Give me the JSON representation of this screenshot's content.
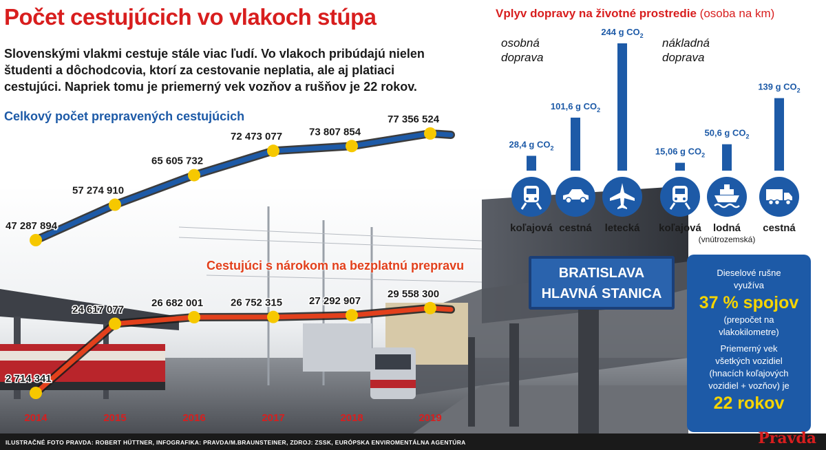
{
  "header": {
    "title": "Počet cestujúcich vo vlakoch stúpa",
    "intro": "Slovenskými vlakmi cestuje stále viac ľudí. Vo vlakoch pribúdajú nielen študenti a dôchodcovia, ktorí za cestovanie neplatia, ale aj platiaci cestujúci. Napriek tomu je priemerný vek vozňov a rušňov je 22 rokov."
  },
  "chart_data": [
    {
      "type": "line",
      "title": "",
      "x": [
        "2014",
        "2015",
        "2016",
        "2017",
        "2018",
        "2019"
      ],
      "series": [
        {
          "name": "Celkový počet prepravených cestujúcich",
          "values": [
            47287894,
            57274910,
            65605732,
            72473077,
            73807854,
            77356524
          ],
          "labels": [
            "47 287 894",
            "57 274 910",
            "65 605 732",
            "72 473 077",
            "73 807 854",
            "77 356 524"
          ],
          "color": "#1d5aa7"
        },
        {
          "name": "Cestujúci s nárokom na bezplatnú prepravu",
          "values": [
            2714341,
            24617077,
            26682001,
            26752315,
            27292907,
            29558300
          ],
          "labels": [
            "2 714 341",
            "24 617 077",
            "26 682 001",
            "26 752 315",
            "27 292 907",
            "29 558 300"
          ],
          "color": "#e2401c"
        }
      ],
      "marker_color": "#f6c800"
    },
    {
      "type": "bar",
      "title": "Vplyv dopravy na životné prostredie",
      "title_unit": "(osoba na km)",
      "groups": [
        {
          "name_line1": "osobná",
          "name_line2": "doprava",
          "bars": [
            {
              "category": "koľajová",
              "value": 28.4,
              "label": "28,4 g CO",
              "icon": "train-icon"
            },
            {
              "category": "cestná",
              "value": 101.6,
              "label": "101,6 g CO",
              "icon": "car-icon"
            },
            {
              "category": "letecká",
              "value": 244,
              "label": "244 g CO",
              "icon": "airplane-icon"
            }
          ]
        },
        {
          "name_line1": "nákladná",
          "name_line2": "doprava",
          "bars": [
            {
              "category": "koľajová",
              "value": 15.06,
              "label": "15,06 g CO",
              "icon": "train-icon"
            },
            {
              "category": "lodná",
              "sub": "(vnútrozemská)",
              "value": 50.6,
              "label": "50,6 g CO",
              "icon": "ship-icon"
            },
            {
              "category": "cestná",
              "value": 139,
              "label": "139 g CO",
              "icon": "truck-icon"
            }
          ]
        }
      ],
      "subscript": "2",
      "bar_color": "#1d5aa7",
      "icon_color": "#1d5aa7"
    }
  ],
  "info_box": {
    "line1": "Dieselové rušne",
    "line2": "využíva",
    "big1": "37 % spojov",
    "line3": "(prepočet na",
    "line4": "vlakokilometre)",
    "line5": "Priemerný vek",
    "line6": "všetkých vozidiel",
    "line7": "(hnacích koľajových",
    "line8": "vozidiel + vozňov) je",
    "big2": "22 rokov"
  },
  "photo_sign": {
    "line1": "BRATISLAVA",
    "line2": "HLAVNÁ STANICA"
  },
  "footer": {
    "credits": "ILUSTRAČNÉ FOTO PRAVDA: ROBERT HÜTTNER, INFOGRAFIKA: PRAVDA/M.BRAUNSTEINER, ZDROJ: ZSSK, EURÓPSKA ENVIROMENTÁLNA AGENTÚRA",
    "brand": "Pravda"
  },
  "colors": {
    "accent_red": "#d81e1e",
    "blue": "#1d5aa7",
    "yellow": "#f6d400"
  }
}
